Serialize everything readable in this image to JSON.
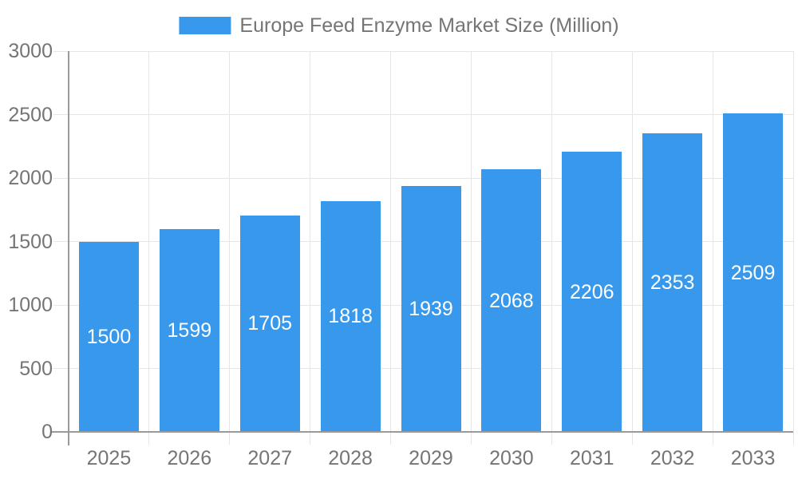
{
  "chart_data": {
    "type": "bar",
    "title": "Europe Feed Enzyme Market Size (Million)",
    "legend_label": "Europe Feed Enzyme Market Size (Million)",
    "legend_position": "top",
    "categories": [
      "2025",
      "2026",
      "2027",
      "2028",
      "2029",
      "2030",
      "2031",
      "2032",
      "2033"
    ],
    "values": [
      1500,
      1599,
      1705,
      1818,
      1939,
      2068,
      2206,
      2353,
      2509
    ],
    "value_labels_shown": true,
    "xlabel": "",
    "ylabel": "",
    "ylim": [
      0,
      3000
    ],
    "yticks": [
      0,
      500,
      1000,
      1500,
      2000,
      2500,
      3000
    ],
    "grid": true,
    "colors": {
      "bar": "#3899EC",
      "value_label": "#FFFFFF",
      "tick_label": "#757575",
      "legend_label": "#757575",
      "gridline": "#E6E6E6",
      "axis_line": "#9A9A9A",
      "background": "#FFFFFF"
    }
  }
}
